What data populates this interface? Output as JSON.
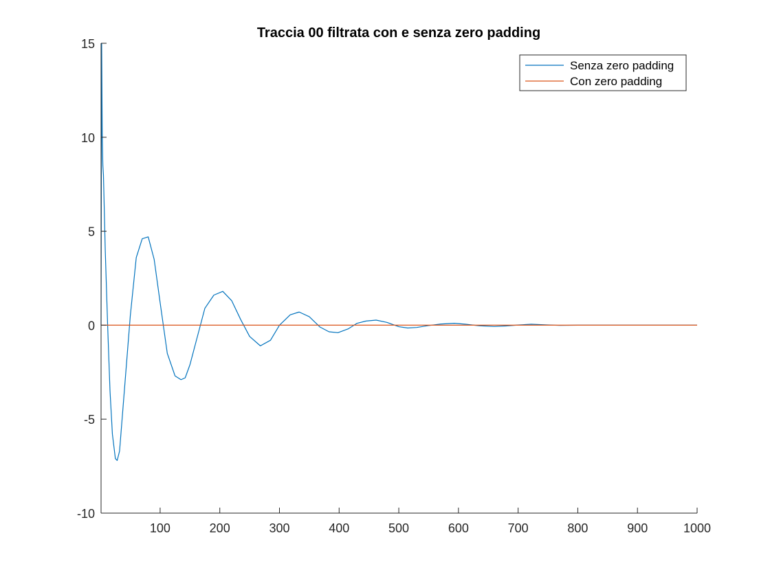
{
  "chart_data": {
    "type": "line",
    "title": "Traccia 00 filtrata con e senza zero padding",
    "xlabel": "",
    "ylabel": "",
    "xlim": [
      1,
      1000
    ],
    "ylim": [
      -10,
      15
    ],
    "xticks": [
      100,
      200,
      300,
      400,
      500,
      600,
      700,
      800,
      900,
      1000
    ],
    "xtick_labels": [
      "100",
      "200",
      "300",
      "400",
      "500",
      "600",
      "700",
      "800",
      "900",
      "1000"
    ],
    "yticks": [
      -10,
      -5,
      0,
      5,
      10,
      15
    ],
    "ytick_labels": [
      "-10",
      "-5",
      "0",
      "5",
      "10",
      "15"
    ],
    "grid": false,
    "legend_position": "top-right",
    "series": [
      {
        "name": "Senza zero padding",
        "color": "#0072BD",
        "x": [
          1,
          2,
          3,
          4,
          5,
          8,
          12,
          16,
          20,
          25,
          28,
          32,
          40,
          50,
          60,
          70,
          80,
          90,
          100,
          112,
          125,
          135,
          142,
          150,
          160,
          175,
          190,
          205,
          220,
          235,
          250,
          268,
          285,
          300,
          318,
          333,
          350,
          368,
          383,
          398,
          415,
          430,
          445,
          462,
          480,
          500,
          515,
          530,
          550,
          570,
          593,
          612,
          635,
          660,
          680,
          700,
          722,
          745,
          770,
          800,
          850,
          900,
          950,
          1000
        ],
        "y": [
          0,
          15,
          10,
          8.5,
          8,
          4,
          0,
          -3.5,
          -5.8,
          -7.1,
          -7.2,
          -6.7,
          -3.5,
          0.5,
          3.6,
          4.6,
          4.7,
          3.5,
          1.2,
          -1.5,
          -2.7,
          -2.9,
          -2.8,
          -2.1,
          -0.9,
          0.9,
          1.6,
          1.8,
          1.3,
          0.3,
          -0.6,
          -1.1,
          -0.8,
          0,
          0.55,
          0.7,
          0.45,
          -0.1,
          -0.35,
          -0.4,
          -0.2,
          0.1,
          0.22,
          0.27,
          0.15,
          -0.08,
          -0.15,
          -0.12,
          -0.02,
          0.06,
          0.1,
          0.05,
          -0.03,
          -0.07,
          -0.04,
          0.01,
          0.05,
          0.02,
          -0.01,
          0,
          0,
          0,
          0,
          0
        ]
      },
      {
        "name": "Con zero padding",
        "color": "#D95319",
        "x": [
          1,
          1000
        ],
        "y": [
          0,
          0
        ]
      }
    ]
  }
}
